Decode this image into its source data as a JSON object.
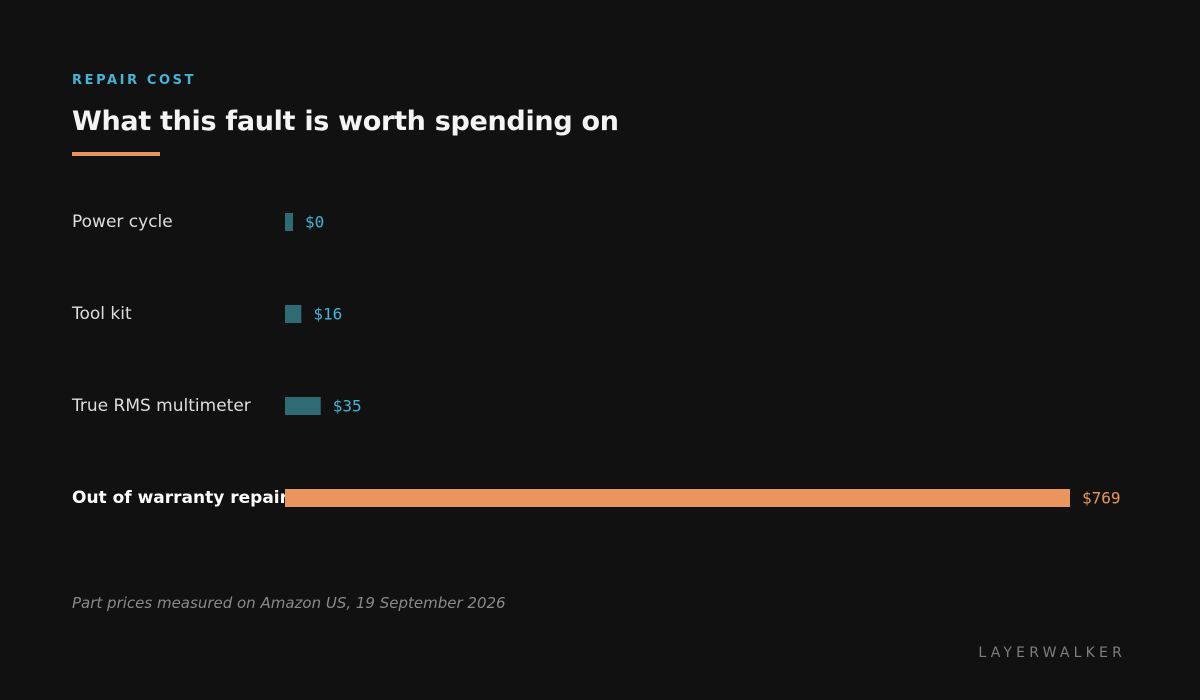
{
  "header": {
    "eyebrow": "REPAIR COST",
    "title": "What this fault is worth spending on"
  },
  "chart_data": {
    "type": "bar",
    "orientation": "horizontal",
    "categories": [
      "Power cycle",
      "Tool kit",
      "True RMS multimeter",
      "Out of warranty repair"
    ],
    "values": [
      0,
      16,
      35,
      769
    ],
    "value_labels": [
      "$0",
      "$16",
      "$35",
      "$769"
    ],
    "highlight": "Out of warranty repair",
    "xlim": [
      0,
      769
    ],
    "grid": false,
    "legend": "none"
  },
  "footnote": "Part prices measured on Amazon US, 19 September 2026",
  "brand": "LAYERWALKER",
  "colors": {
    "background": "#111111",
    "eyebrow": "#45b4d6",
    "accent": "#e9955d",
    "bar": "#2e6b74",
    "bar_highlight": "#e9955d",
    "value_text": "#45b4d6",
    "value_text_highlight": "#e9955d"
  }
}
